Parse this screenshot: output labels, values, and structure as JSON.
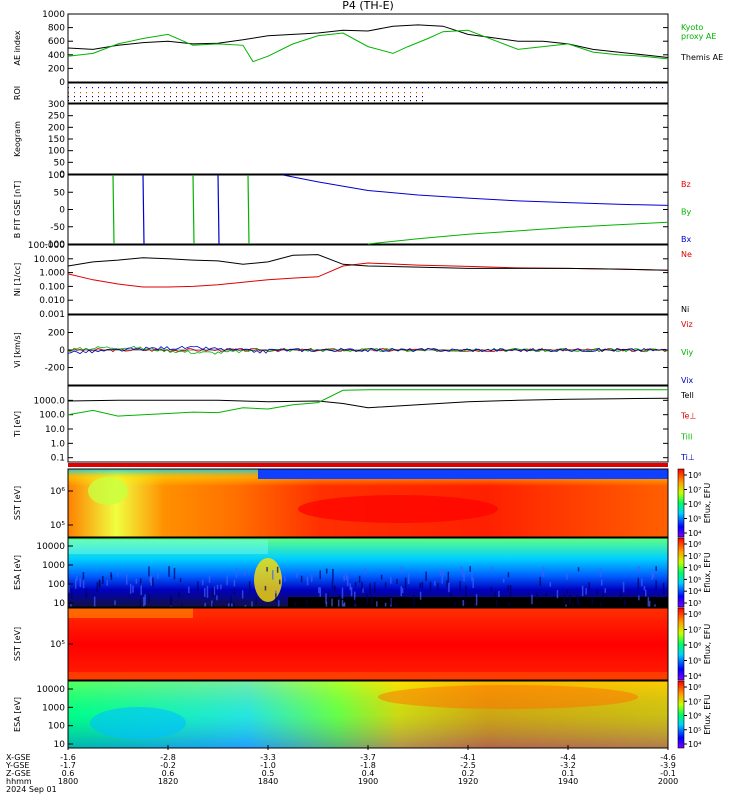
{
  "title": "P4 (TH-E)",
  "colors": {
    "black": "#000000",
    "red": "#e00000",
    "green": "#00b400",
    "blue": "#0000d0",
    "kyoto": "#00c800"
  },
  "chart_data": [
    {
      "id": "ae",
      "type": "line",
      "ylabel": "AE index",
      "ylim": [
        0,
        1000
      ],
      "yticks": [
        "1000",
        "800",
        "600",
        "400",
        "200",
        "0"
      ],
      "right_labels": [
        {
          "text": "Kyoto",
          "color": "green"
        },
        {
          "text": "proxy AE",
          "color": "green"
        },
        {
          "text": "Themis AE",
          "color": "black"
        }
      ],
      "series": [
        {
          "name": "Themis AE",
          "color": "black",
          "x": [
            0,
            5,
            10,
            15,
            20,
            25,
            30,
            35,
            40,
            45,
            50,
            55,
            60,
            65,
            70,
            75,
            80,
            85,
            90,
            95,
            100,
            105,
            110,
            115,
            120
          ],
          "y": [
            500,
            480,
            540,
            580,
            600,
            560,
            570,
            620,
            680,
            700,
            720,
            760,
            750,
            820,
            840,
            820,
            700,
            650,
            600,
            600,
            560,
            480,
            440,
            400,
            360
          ]
        },
        {
          "name": "Kyoto proxy AE",
          "color": "green",
          "x": [
            0,
            5,
            10,
            15,
            20,
            25,
            30,
            35,
            37,
            40,
            45,
            50,
            55,
            60,
            65,
            68,
            72,
            75,
            80,
            85,
            90,
            95,
            100,
            105,
            110,
            115,
            120
          ],
          "y": [
            380,
            420,
            560,
            640,
            700,
            540,
            560,
            540,
            300,
            380,
            560,
            680,
            720,
            520,
            420,
            520,
            640,
            740,
            760,
            620,
            480,
            520,
            560,
            440,
            400,
            380,
            340
          ]
        }
      ]
    },
    {
      "id": "roi",
      "type": "scatter",
      "ylabel": "ROI",
      "note": "dotted region-of-interest flag rows"
    },
    {
      "id": "keogram",
      "type": "line",
      "ylabel": "Keogram",
      "ylim": [
        0,
        300
      ],
      "yticks": [
        "300",
        "250",
        "200",
        "150",
        "100",
        "50",
        "0"
      ]
    },
    {
      "id": "bfield",
      "type": "line",
      "ylabel": "B FIT GSE [nT]",
      "ylim": [
        -100,
        100
      ],
      "yticks": [
        "100",
        "50",
        "0",
        "-50",
        "-100"
      ],
      "right_labels": [
        {
          "text": "Bz",
          "color": "red"
        },
        {
          "text": "By",
          "color": "green"
        },
        {
          "text": "Bx",
          "color": "blue"
        }
      ],
      "series": [
        {
          "name": "Bx",
          "color": "blue",
          "x": [
            43,
            50,
            60,
            70,
            80,
            90,
            100,
            110,
            120
          ],
          "y": [
            100,
            80,
            55,
            42,
            33,
            25,
            20,
            15,
            12
          ]
        },
        {
          "name": "By",
          "color": "green",
          "x": [
            60,
            70,
            80,
            90,
            100,
            110,
            120
          ],
          "y": [
            -100,
            -85,
            -72,
            -62,
            -52,
            -44,
            -37
          ]
        }
      ]
    },
    {
      "id": "density",
      "type": "line",
      "ylabel": "Ni [1/cc]",
      "log": true,
      "ylim": [
        0.001,
        100
      ],
      "yticks": [
        "100.000",
        "10.000",
        "1.000",
        "0.100",
        "0.010",
        "0.001"
      ],
      "right_labels": [
        {
          "text": "Ne",
          "color": "red"
        },
        {
          "text": "Ni",
          "color": "black"
        }
      ],
      "series": [
        {
          "name": "Ne",
          "color": "red",
          "x": [
            0,
            5,
            10,
            15,
            20,
            25,
            30,
            35,
            40,
            45,
            50,
            55,
            60,
            70,
            80,
            90,
            100,
            110,
            120
          ],
          "y": [
            0.8,
            0.3,
            0.15,
            0.09,
            0.09,
            0.1,
            0.13,
            0.2,
            0.3,
            0.4,
            0.5,
            3,
            5,
            3.5,
            2.8,
            2.2,
            2,
            1.8,
            1.5
          ]
        },
        {
          "name": "Ni",
          "color": "black",
          "x": [
            0,
            5,
            10,
            15,
            20,
            25,
            30,
            35,
            40,
            45,
            50,
            55,
            60,
            70,
            80,
            90,
            100,
            110,
            120
          ],
          "y": [
            3,
            6,
            8,
            12,
            10,
            8,
            7,
            4,
            6,
            18,
            20,
            4,
            3,
            2.5,
            2,
            2,
            2,
            1.8,
            1.5
          ]
        }
      ]
    },
    {
      "id": "velocity",
      "type": "line",
      "ylabel": "Vi [km/s]",
      "ylim": [
        -400,
        400
      ],
      "yticks": [
        "200",
        "0",
        "-200"
      ],
      "right_labels": [
        {
          "text": "Viz",
          "color": "red"
        },
        {
          "text": "Viy",
          "color": "green"
        },
        {
          "text": "Vix",
          "color": "blue"
        }
      ]
    },
    {
      "id": "temperature",
      "type": "line",
      "ylabel": "Ti [eV]",
      "log": true,
      "ylim": [
        0.05,
        10000
      ],
      "yticks": [
        "1000.0",
        "100.0",
        "10.0",
        "1.0",
        "0.1"
      ],
      "right_labels": [
        {
          "text": "Tell",
          "color": "black"
        },
        {
          "text": "Te⊥",
          "color": "red"
        },
        {
          "text": "Till",
          "color": "green"
        },
        {
          "text": "Ti⊥",
          "color": "blue"
        }
      ],
      "series": [
        {
          "name": "Te",
          "color": "black",
          "x": [
            0,
            10,
            20,
            30,
            40,
            50,
            55,
            60,
            70,
            80,
            90,
            100,
            110,
            120
          ],
          "y": [
            900,
            1000,
            1000,
            1000,
            800,
            900,
            600,
            300,
            500,
            800,
            1000,
            1200,
            1300,
            1400
          ]
        },
        {
          "name": "Ti",
          "color": "green",
          "x": [
            0,
            5,
            10,
            15,
            20,
            25,
            30,
            35,
            40,
            45,
            50,
            55,
            60,
            70,
            80,
            90,
            100,
            110,
            120
          ],
          "y": [
            100,
            200,
            80,
            100,
            120,
            150,
            140,
            300,
            250,
            500,
            700,
            5000,
            5500,
            5500,
            5500,
            5500,
            5500,
            5500,
            5500
          ]
        }
      ]
    },
    {
      "id": "sst_eflux_1",
      "type": "heatmap",
      "ylabel": "SST [eV]",
      "ytick_labels": [
        "10⁶",
        "10⁵"
      ],
      "colorbar": {
        "label": "Eflux, EFU",
        "ticks": [
          "10⁸",
          "10⁷",
          "10⁶",
          "10⁵",
          "10⁴"
        ]
      }
    },
    {
      "id": "esa_eflux_1",
      "type": "heatmap",
      "ylabel": "ESA [eV]",
      "yticks": [
        "10000",
        "1000",
        "100",
        "10"
      ],
      "colorbar": {
        "label": "Eflux, EFU",
        "ticks": [
          "10⁸",
          "10⁷",
          "10⁶",
          "10⁵",
          "10⁴",
          "10³"
        ]
      }
    },
    {
      "id": "sst_eflux_2",
      "type": "heatmap",
      "ylabel": "SST [eV]",
      "ytick_labels": [
        "10⁵"
      ],
      "colorbar": {
        "label": "Eflux, EFU",
        "ticks": [
          "10⁸",
          "10⁷",
          "10⁶",
          "10⁵",
          "10⁴"
        ]
      }
    },
    {
      "id": "esa_eflux_2",
      "type": "heatmap",
      "ylabel": "ESA [eV]",
      "yticks": [
        "10000",
        "1000",
        "100",
        "10"
      ],
      "colorbar": {
        "label": "Eflux, EFU",
        "ticks": [
          "10⁸",
          "10⁷",
          "10⁶",
          "10⁵",
          "10⁴"
        ]
      }
    }
  ],
  "xaxis": {
    "range_minutes": [
      0,
      120
    ],
    "row_labels": [
      "X-GSE",
      "Y-GSE",
      "Z-GSE",
      "hhmm",
      "2024 Sep 01"
    ],
    "columns": [
      {
        "x": "-1.6",
        "y": "-1.7",
        "z": "0.6",
        "t": "1800"
      },
      {
        "x": "-2.8",
        "y": "-0.2",
        "z": "0.6",
        "t": "1820"
      },
      {
        "x": "-3.3",
        "y": "-1.0",
        "z": "0.5",
        "t": "1840"
      },
      {
        "x": "-3.7",
        "y": "-1.8",
        "z": "0.4",
        "t": "1900"
      },
      {
        "x": "-4.1",
        "y": "-2.5",
        "z": "0.2",
        "t": "1920"
      },
      {
        "x": "-4.4",
        "y": "-3.2",
        "z": "0.1",
        "t": "1940"
      },
      {
        "x": "-4.6",
        "y": "-3.9",
        "z": "-0.1",
        "t": "2000"
      }
    ]
  }
}
